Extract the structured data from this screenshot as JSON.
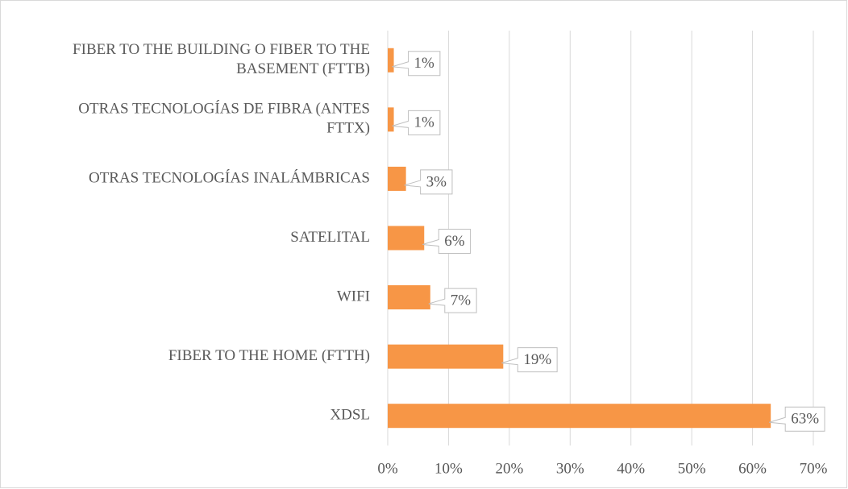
{
  "chart_data": {
    "type": "barh",
    "categories": [
      "FIBER TO THE BUILDING O FIBER TO THE BASEMENT (FTTB)",
      "OTRAS TECNOLOGÍAS DE FIBRA (ANTES FTTX)",
      "OTRAS TECNOLOGÍAS INALÁMBRICAS",
      "SATELITAL",
      "WIFI",
      "FIBER TO THE HOME (FTTH)",
      "XDSL"
    ],
    "values": [
      1,
      1,
      3,
      6,
      7,
      19,
      63
    ],
    "value_labels": [
      "1%",
      "1%",
      "3%",
      "6%",
      "7%",
      "19%",
      "63%"
    ],
    "color": "#f79646",
    "xlim": [
      0,
      70
    ],
    "xticks": [
      {
        "value": 0,
        "label": "0%"
      },
      {
        "value": 10,
        "label": "10%"
      },
      {
        "value": 20,
        "label": "20%"
      },
      {
        "value": 30,
        "label": "30%"
      },
      {
        "value": 40,
        "label": "40%"
      },
      {
        "value": 50,
        "label": "50%"
      },
      {
        "value": 60,
        "label": "60%"
      },
      {
        "value": 70,
        "label": "70%"
      }
    ],
    "grid": true
  }
}
